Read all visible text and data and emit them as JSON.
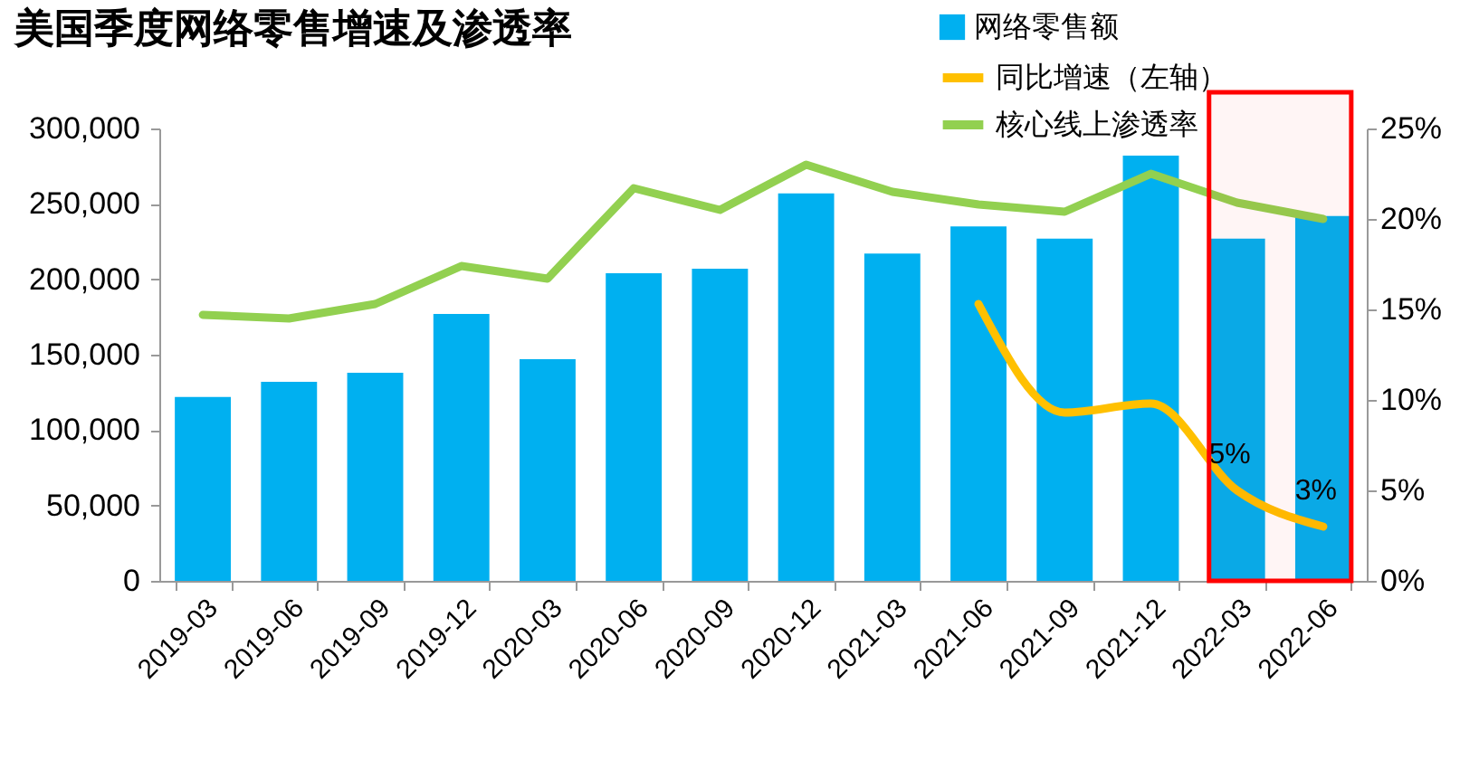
{
  "chart_data": {
    "type": "bar",
    "title": "美国季度网络零售增速及渗透率",
    "categories": [
      "2019-03",
      "2019-06",
      "2019-09",
      "2019-12",
      "2020-03",
      "2020-06",
      "2020-09",
      "2020-12",
      "2021-03",
      "2021-06",
      "2021-09",
      "2021-12",
      "2022-03",
      "2022-06"
    ],
    "series": [
      {
        "name": "网络零售额",
        "color": "#00b0f0",
        "values": [
          122000,
          132000,
          138000,
          177000,
          147000,
          204000,
          207000,
          257000,
          217000,
          235000,
          227000,
          282000,
          227000,
          242000
        ]
      },
      {
        "name": "同比增速（左轴）",
        "type": "line",
        "axis": "y2",
        "color": "#ffc000",
        "values": [
          null,
          null,
          null,
          null,
          null,
          null,
          null,
          null,
          null,
          15.3,
          9.3,
          9.8,
          5,
          3
        ],
        "value_labels": [
          null,
          null,
          null,
          null,
          null,
          null,
          null,
          null,
          null,
          null,
          null,
          null,
          "5%",
          "3%"
        ]
      },
      {
        "name": "核心线上渗透率",
        "type": "line",
        "axis": "y2",
        "color": "#92d050",
        "values": [
          14.7,
          14.5,
          15.3,
          17.4,
          16.7,
          21.7,
          20.5,
          23.0,
          21.5,
          20.8,
          20.4,
          22.5,
          20.9,
          20.0
        ]
      }
    ],
    "ylim": [
      0,
      300000
    ],
    "yticks": [
      0,
      {
        "value": 50000,
        "label": "50,000"
      },
      {
        "value": 100000,
        "label": "100,000"
      },
      {
        "value": 150000,
        "label": "150,000"
      },
      {
        "value": 200000,
        "label": "200,000"
      },
      {
        "value": 250000,
        "label": "250,000"
      },
      {
        "value": 300000,
        "label": "300,000"
      }
    ],
    "y2lim": [
      0,
      25
    ],
    "y2ticks": [
      {
        "value": 0,
        "label": "0%"
      },
      {
        "value": 5,
        "label": "5%"
      },
      {
        "value": 10,
        "label": "10%"
      },
      {
        "value": 15,
        "label": "15%"
      },
      {
        "value": 20,
        "label": "20%"
      },
      {
        "value": 25,
        "label": "25%"
      }
    ],
    "bands": [
      {
        "axis": "x",
        "from": "2022-03",
        "to": "2022-06",
        "color": "#ff0000"
      }
    ],
    "legend": "top right",
    "grid": false
  }
}
